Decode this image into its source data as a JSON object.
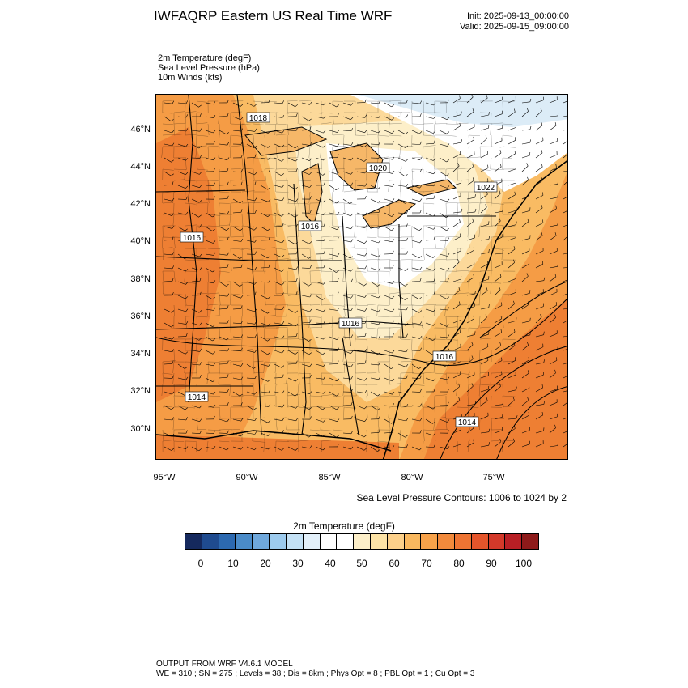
{
  "header": {
    "title": "IWFAQRP Eastern US Real Time WRF",
    "init": "Init: 2025-09-13_00:00:00",
    "valid": "Valid: 2025-09-15_09:00:00"
  },
  "fields": [
    "2m Temperature   (degF)",
    "Sea Level Pressure   (hPa)",
    "10m Winds   (kts)"
  ],
  "map": {
    "lat_labels": [
      "46°N",
      "44°N",
      "42°N",
      "40°N",
      "38°N",
      "36°N",
      "34°N",
      "32°N",
      "30°N"
    ],
    "lon_labels": [
      "95°W",
      "90°W",
      "85°W",
      "80°W",
      "75°W"
    ],
    "pressure_labels": [
      "1018",
      "1020",
      "1022",
      "1016",
      "1016",
      "1016",
      "1016",
      "1014",
      "1014"
    ],
    "colors": {
      "t65": "#fdefc9",
      "t70": "#fcd99a",
      "t75": "#f9bb63",
      "t80": "#f59c45",
      "t85": "#ee7f33",
      "t90": "#e55a2a",
      "cool": "#dcecf7",
      "water_lake": "#f6b768",
      "land_white": "#ffffff"
    }
  },
  "contour_note": "Sea Level Pressure Contours: 1006 to 1024 by 2",
  "colorbar": {
    "title": "2m Temperature  (degF)",
    "labels": [
      "0",
      "10",
      "20",
      "30",
      "40",
      "50",
      "60",
      "70",
      "80",
      "90",
      "100"
    ],
    "colors": [
      "#15295d",
      "#1f4b8f",
      "#2c69b0",
      "#4a8bc8",
      "#6fa8dc",
      "#9dcbee",
      "#c4e1f5",
      "#e3f0fa",
      "#ffffff",
      "#ffffff",
      "#fdefc9",
      "#fde3a6",
      "#fcd08a",
      "#f9b85f",
      "#f7a24a",
      "#f28a3c",
      "#ee7433",
      "#e5552b",
      "#d3392a",
      "#b81f25",
      "#8e1a1a"
    ]
  },
  "footer": {
    "line1": "OUTPUT FROM WRF V4.6.1 MODEL",
    "line2": "WE = 310 ; SN = 275 ; Levels = 38 ; Dis = 8km ; Phys Opt = 8 ; PBL Opt = 1 ; Cu Opt = 3"
  }
}
